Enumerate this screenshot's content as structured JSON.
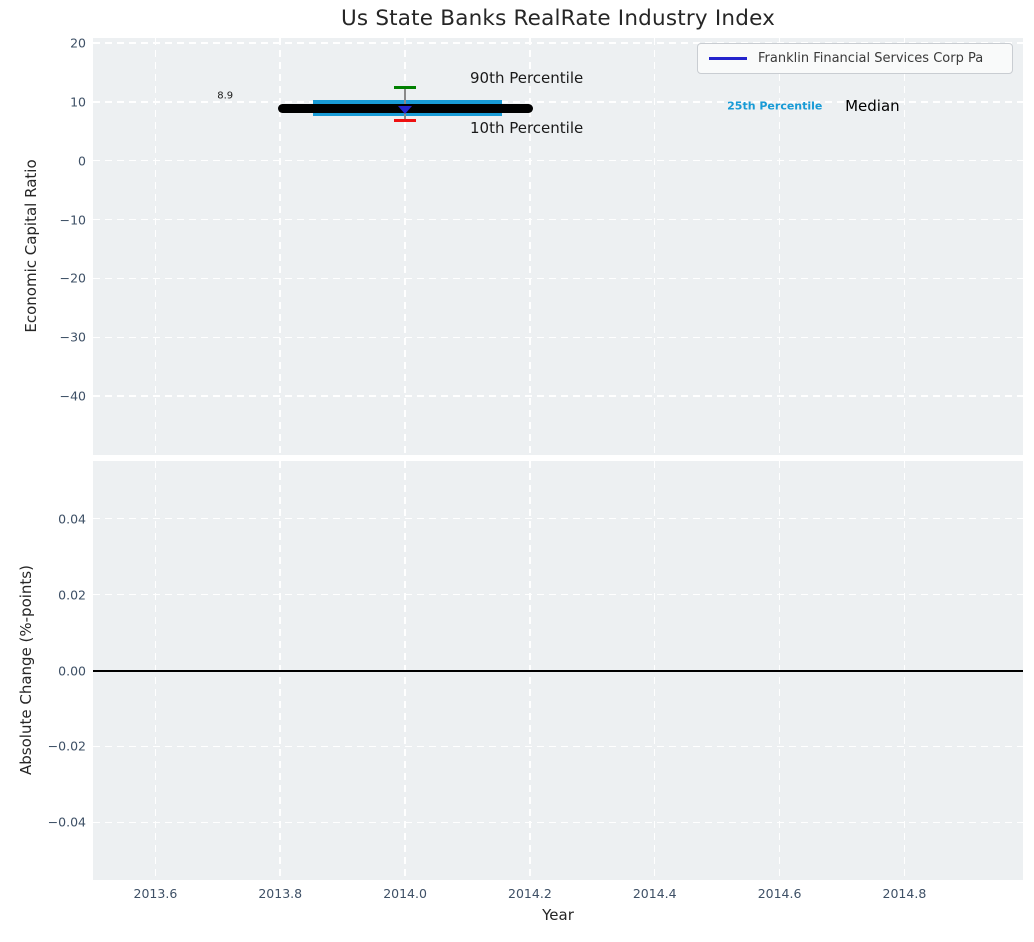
{
  "colors": {
    "figure_bg": "#ffffff",
    "panel_bg": "#edf0f2",
    "grid": "#ffffff",
    "tick_label": "#3e5066",
    "text": "#262626",
    "company_blue": "#2323cc",
    "percentile25_cyan": "#189bd6",
    "percentile90_green": "#008000",
    "percentile10_red": "#ee1010",
    "median_black": "#000000"
  },
  "chart_data": [
    {
      "type": "line",
      "panel": "top",
      "title": "Us State Banks RealRate Industry Index",
      "ylabel": "Economic Capital Ratio",
      "xlim": [
        2013.5,
        2014.99
      ],
      "ylim": [
        -50,
        20.85
      ],
      "grid": "white-dashed",
      "xticks": [
        "2013.6",
        "2013.8",
        "2014.0",
        "2014.2",
        "2014.4",
        "2014.6",
        "2014.8"
      ],
      "yticks": [
        "20",
        "10",
        "0",
        "−10",
        "−20",
        "−30",
        "−40"
      ],
      "legend": {
        "label": "Franklin Financial Services Corp Pa",
        "line_color": "#2323cc",
        "position": "upper right"
      },
      "series": [
        {
          "id": "percentile-25-line",
          "name": "25th Percentile",
          "style": "hline",
          "color": "#189bd6",
          "y": 8.9,
          "x_start": 2013.852,
          "x_end": 2014.155,
          "thickness": 16
        },
        {
          "id": "percentile-range-errorbar",
          "name": "90th-10th Percentile Range",
          "style": "errorbar",
          "x": 2014.0,
          "y_top": 12.5,
          "y_bottom": 6.9,
          "cap_half_width_years": 0.017,
          "top_color": "#008000",
          "bottom_color": "#ee1010",
          "line_color": "#8a8a8a"
        },
        {
          "id": "median-line",
          "name": "Median",
          "style": "hline",
          "color": "#000000",
          "y": 8.9,
          "x_start": 2013.796,
          "x_end": 2014.205,
          "thickness": 9,
          "round_caps": true
        },
        {
          "id": "company-point",
          "name": "Franklin Financial Services Corp Pa",
          "style": "marker-triangle-down",
          "color": "#2323cc",
          "x": 2014.0,
          "y": 8.6
        }
      ],
      "annotations": [
        {
          "id": "median-value-label",
          "text": "8.9",
          "x": 2013.699,
          "y": 11.0,
          "color": "#1a1a1a",
          "size": 10,
          "bold": false
        },
        {
          "id": "p90-label",
          "text": "90th Percentile",
          "x": 2014.104,
          "y": 14.1,
          "color": "#1a1a1a",
          "size": 15,
          "bold": false
        },
        {
          "id": "p10-label",
          "text": "10th Percentile",
          "x": 2014.104,
          "y": 5.6,
          "color": "#1a1a1a",
          "size": 15,
          "bold": false
        },
        {
          "id": "p25-label",
          "text": "25th Percentile",
          "x": 2014.516,
          "y": 9.3,
          "color": "#189bd6",
          "size": 11,
          "bold": true
        },
        {
          "id": "median-label",
          "text": "Median",
          "x": 2014.705,
          "y": 9.3,
          "color": "#000000",
          "size": 15,
          "bold": false
        }
      ]
    },
    {
      "type": "line",
      "panel": "bottom",
      "ylabel": "Absolute Change (%-points)",
      "xlabel": "Year",
      "xlim": [
        2013.5,
        2014.99
      ],
      "ylim": [
        -0.0552,
        0.0552
      ],
      "grid": "white-dashed",
      "yticks": [
        "0.04",
        "0.02",
        "0.00",
        "−0.02",
        "−0.04"
      ],
      "series": [
        {
          "id": "zero-line",
          "name": "Zero Change Baseline",
          "style": "hline",
          "color": "#000000",
          "y": 0.0,
          "x_start": 2013.5,
          "x_end": 2014.99,
          "thickness": 2
        }
      ]
    }
  ]
}
